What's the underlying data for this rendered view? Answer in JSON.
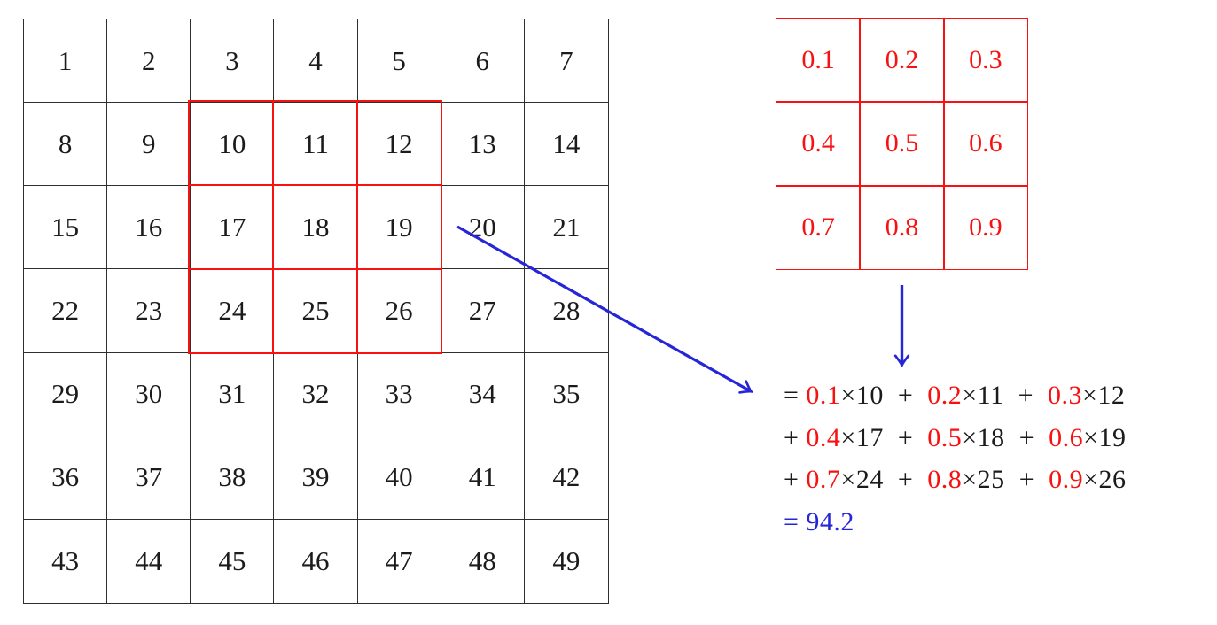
{
  "title": "2D convolution weighted-sum diagram",
  "colors": {
    "red": "#f81111",
    "blue": "#2626d8",
    "black": "#1b1b1b",
    "grid_line": "#2e2e2e"
  },
  "input_grid": {
    "rows": 7,
    "cols": 7,
    "cells": [
      1,
      2,
      3,
      4,
      5,
      6,
      7,
      8,
      9,
      10,
      11,
      12,
      13,
      14,
      15,
      16,
      17,
      18,
      19,
      20,
      21,
      22,
      23,
      24,
      25,
      26,
      27,
      28,
      29,
      30,
      31,
      32,
      33,
      34,
      35,
      36,
      37,
      38,
      39,
      40,
      41,
      42,
      43,
      44,
      45,
      46,
      47,
      48,
      49
    ],
    "highlighted_values": [
      10,
      11,
      12,
      17,
      18,
      19,
      24,
      25,
      26
    ]
  },
  "kernel_grid": {
    "rows": 3,
    "cols": 3,
    "cells": [
      "0.1",
      "0.2",
      "0.3",
      "0.4",
      "0.5",
      "0.6",
      "0.7",
      "0.8",
      "0.9"
    ]
  },
  "equation": {
    "lines": [
      {
        "segments": [
          {
            "text": "= ",
            "color": "black"
          },
          {
            "text": "0.1",
            "color": "red"
          },
          {
            "text": "×10",
            "color": "black"
          },
          {
            "text": "  +  ",
            "color": "black"
          },
          {
            "text": "0.2",
            "color": "red"
          },
          {
            "text": "×11",
            "color": "black"
          },
          {
            "text": "  +  ",
            "color": "black"
          },
          {
            "text": "0.3",
            "color": "red"
          },
          {
            "text": "×12",
            "color": "black"
          }
        ]
      },
      {
        "segments": [
          {
            "text": "+ ",
            "color": "black"
          },
          {
            "text": "0.4",
            "color": "red"
          },
          {
            "text": "×17",
            "color": "black"
          },
          {
            "text": "  +  ",
            "color": "black"
          },
          {
            "text": "0.5",
            "color": "red"
          },
          {
            "text": "×18",
            "color": "black"
          },
          {
            "text": "  +  ",
            "color": "black"
          },
          {
            "text": "0.6",
            "color": "red"
          },
          {
            "text": "×19",
            "color": "black"
          }
        ]
      },
      {
        "segments": [
          {
            "text": "+ ",
            "color": "black"
          },
          {
            "text": "0.7",
            "color": "red"
          },
          {
            "text": "×24",
            "color": "black"
          },
          {
            "text": "  +  ",
            "color": "black"
          },
          {
            "text": "0.8",
            "color": "red"
          },
          {
            "text": "×25",
            "color": "black"
          },
          {
            "text": "  +  ",
            "color": "black"
          },
          {
            "text": "0.9",
            "color": "red"
          },
          {
            "text": "×26",
            "color": "black"
          }
        ]
      },
      {
        "segments": [
          {
            "text": "= 94.2",
            "color": "blue"
          }
        ]
      }
    ]
  }
}
